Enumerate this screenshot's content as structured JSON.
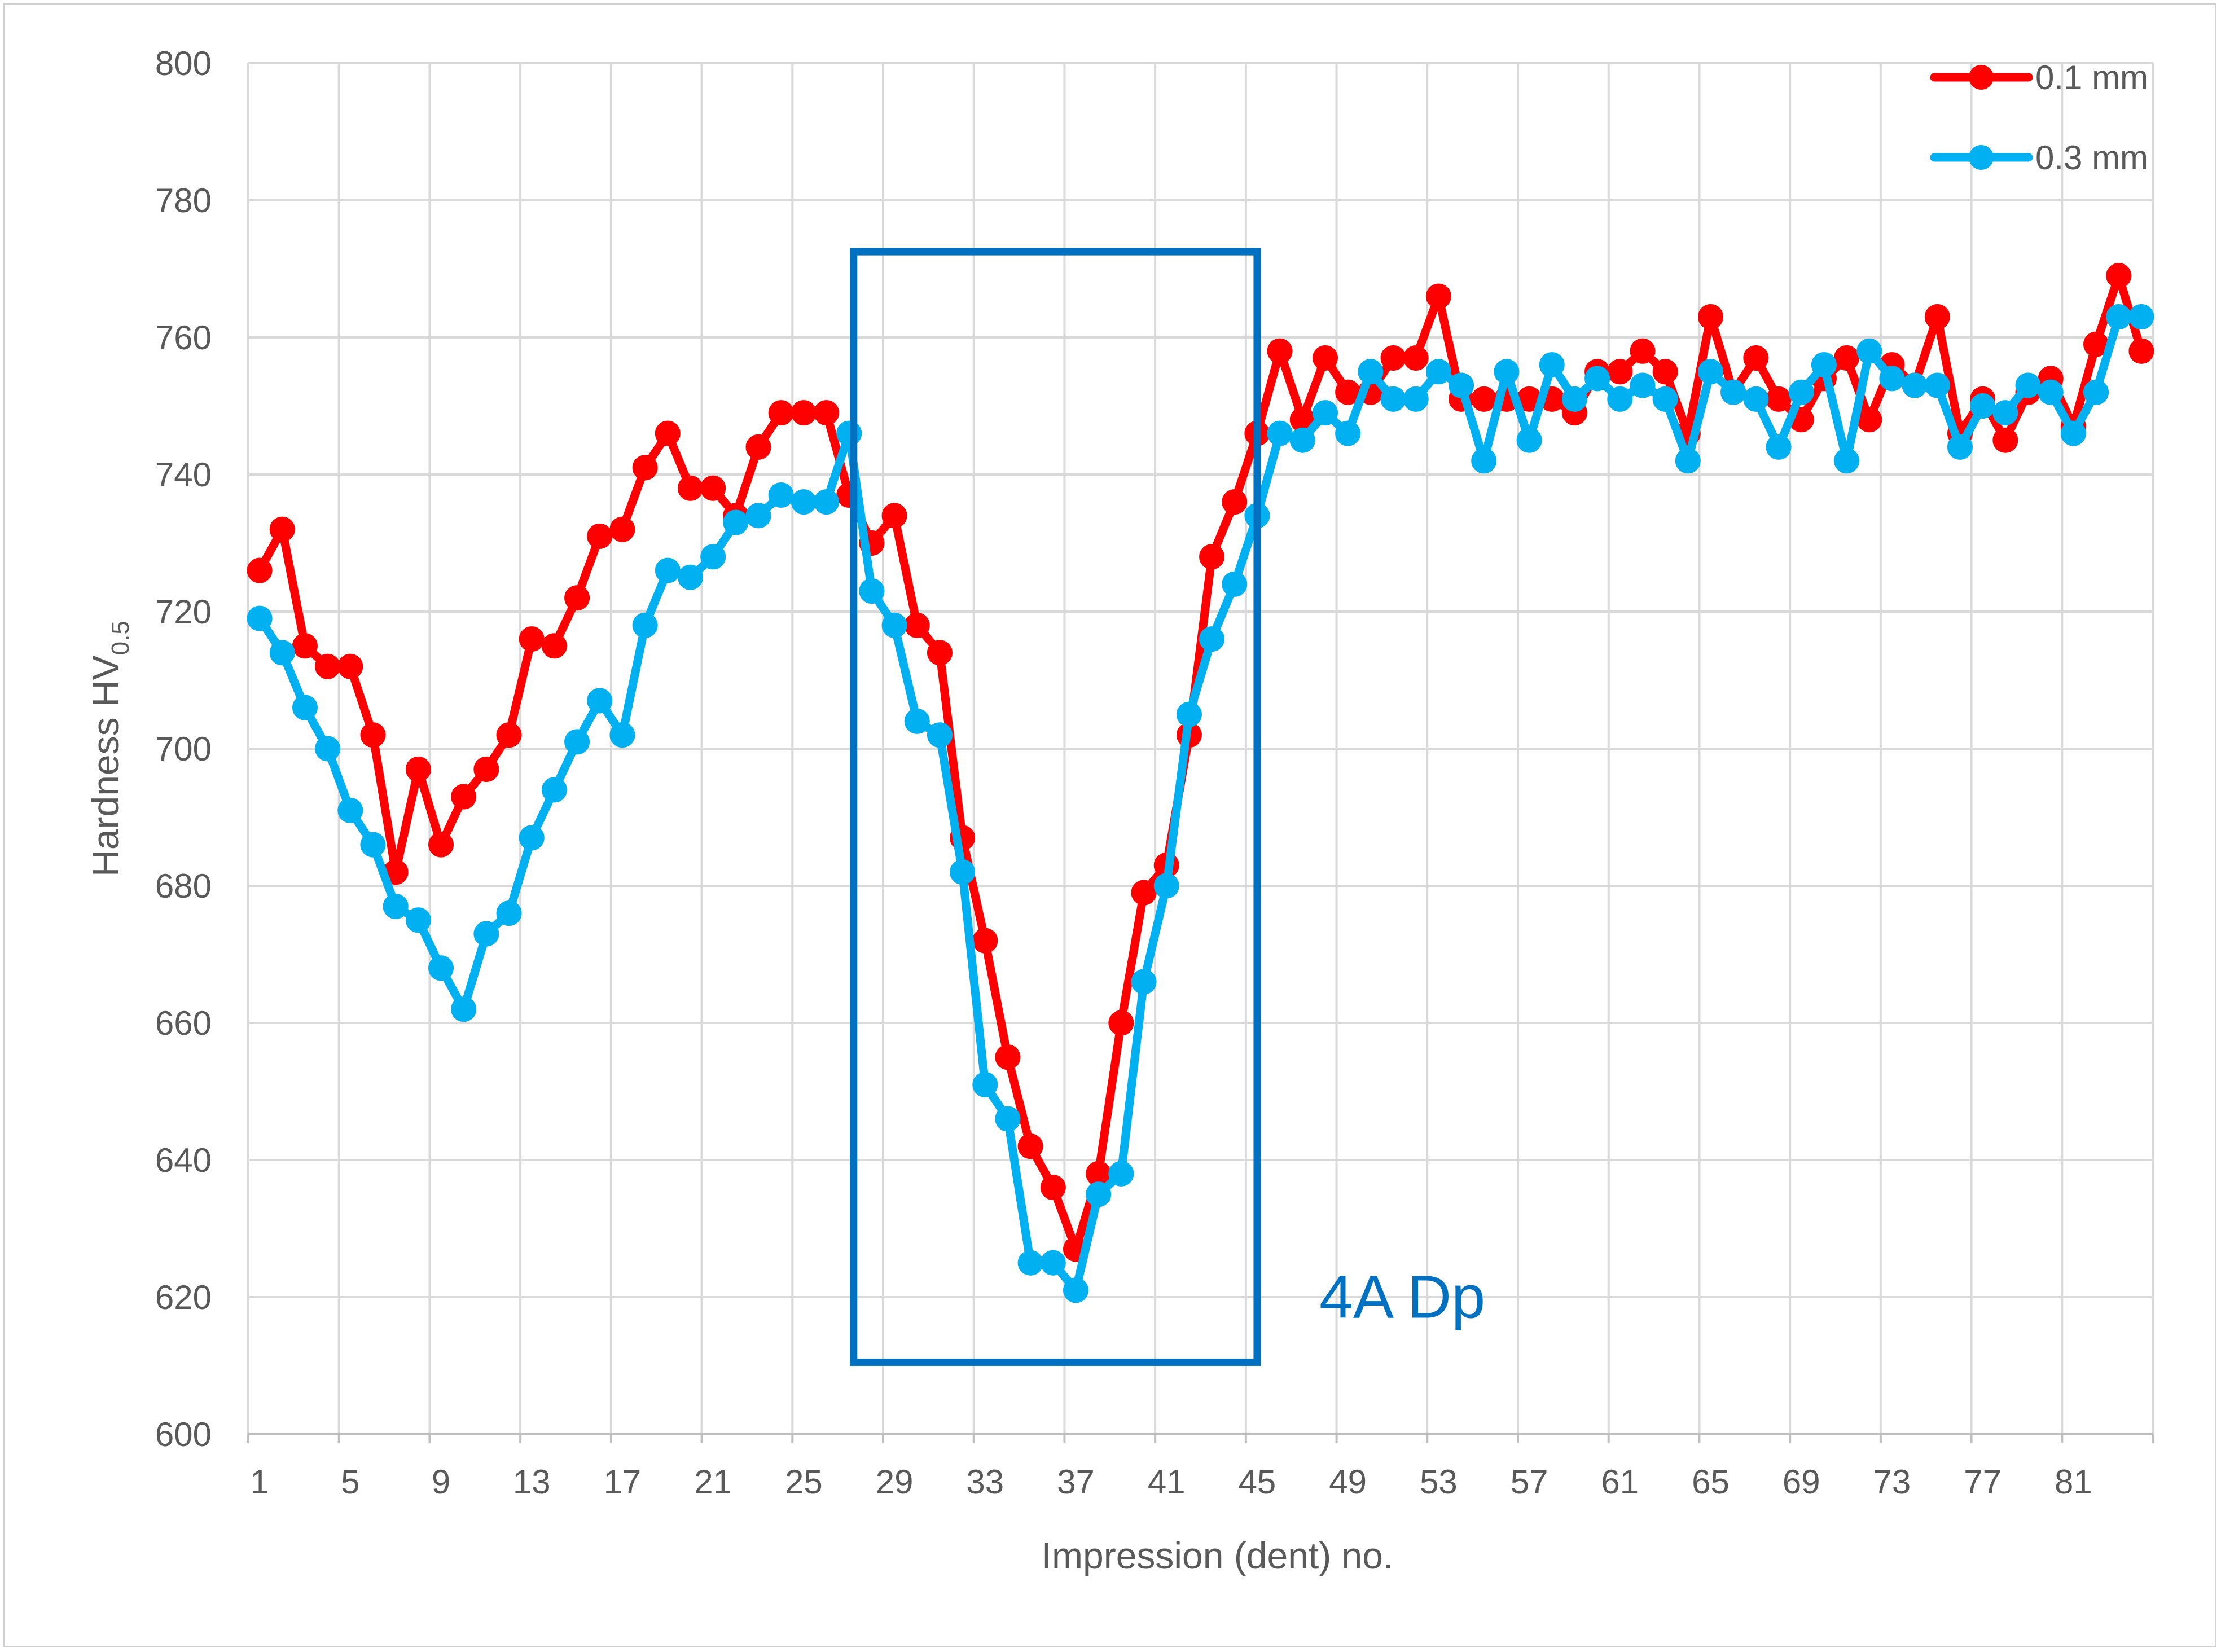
{
  "chart_data": {
    "type": "line",
    "title": "",
    "xlabel": "Impression (dent) no.",
    "ylabel": {
      "main": "Hardness HV",
      "subscript": "0.5"
    },
    "ylim": [
      600,
      800
    ],
    "yticks": [
      600,
      620,
      640,
      660,
      680,
      700,
      720,
      740,
      760,
      780,
      800
    ],
    "xlim": [
      1,
      84
    ],
    "xticks": [
      1,
      5,
      9,
      13,
      17,
      21,
      25,
      29,
      33,
      37,
      41,
      45,
      49,
      53,
      57,
      61,
      65,
      69,
      73,
      77,
      81
    ],
    "grid": true,
    "legend_position": "top-right",
    "x": [
      1,
      2,
      3,
      4,
      5,
      6,
      7,
      8,
      9,
      10,
      11,
      12,
      13,
      14,
      15,
      16,
      17,
      18,
      19,
      20,
      21,
      22,
      23,
      24,
      25,
      26,
      27,
      28,
      29,
      30,
      31,
      32,
      33,
      34,
      35,
      36,
      37,
      38,
      39,
      40,
      41,
      42,
      43,
      44,
      45,
      46,
      47,
      48,
      49,
      50,
      51,
      52,
      53,
      54,
      55,
      56,
      57,
      58,
      59,
      60,
      61,
      62,
      63,
      64,
      65,
      66,
      67,
      68,
      69,
      70,
      71,
      72,
      73,
      74,
      75,
      76,
      77,
      78,
      79,
      80,
      81,
      82,
      83,
      84
    ],
    "series": [
      {
        "name": "0.1 mm",
        "color": "#ff0000",
        "values": [
          726,
          732,
          715,
          712,
          712,
          702,
          682,
          697,
          686,
          693,
          697,
          702,
          716,
          715,
          722,
          731,
          732,
          741,
          746,
          738,
          738,
          734,
          744,
          749,
          749,
          749,
          737,
          730,
          734,
          718,
          714,
          687,
          672,
          655,
          642,
          636,
          627,
          638,
          660,
          679,
          683,
          702,
          728,
          736,
          746,
          758,
          748,
          757,
          752,
          752,
          757,
          757,
          766,
          751,
          751,
          751,
          751,
          751,
          749,
          755,
          755,
          758,
          755,
          746,
          763,
          752,
          757,
          751,
          748,
          754,
          757,
          748,
          756,
          753,
          763,
          746,
          751,
          745,
          752,
          754,
          747,
          759,
          769,
          758
        ]
      },
      {
        "name": "0.3 mm",
        "color": "#00b0f0",
        "values": [
          719,
          714,
          706,
          700,
          691,
          686,
          677,
          675,
          668,
          662,
          673,
          676,
          687,
          694,
          701,
          707,
          702,
          718,
          726,
          725,
          728,
          733,
          734,
          737,
          736,
          736,
          746,
          723,
          718,
          704,
          702,
          682,
          651,
          646,
          625,
          625,
          621,
          635,
          638,
          666,
          680,
          705,
          716,
          724,
          734,
          746,
          745,
          749,
          746,
          755,
          751,
          751,
          755,
          753,
          742,
          755,
          745,
          756,
          751,
          754,
          751,
          753,
          751,
          742,
          755,
          752,
          751,
          744,
          752,
          756,
          742,
          758,
          754,
          753,
          753,
          744,
          750,
          749,
          753,
          752,
          746,
          752,
          763,
          763
        ]
      }
    ],
    "annotation": {
      "label": "4A Dp",
      "x_range": [
        27.2,
        45.0
      ],
      "y_range": [
        610.5,
        772.5
      ],
      "color": "#0070c0"
    }
  }
}
